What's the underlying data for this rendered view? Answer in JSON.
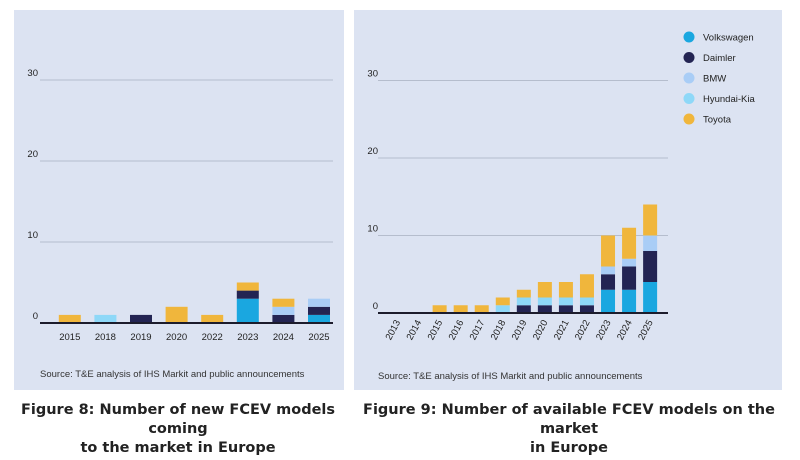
{
  "colors": {
    "Volkswagen": "#1aa7e0",
    "Daimler": "#232453",
    "BMW": "#a9cdf6",
    "Hyundai-Kia": "#8ed8f8",
    "Toyota": "#f0b63c",
    "gridline": "#a9b0c0",
    "axis": "#1c1c2c",
    "panel": "#dce3f2"
  },
  "figure8": {
    "caption_line1": "Figure 8: Number of new FCEV models coming",
    "caption_line2": "to the market in Europe",
    "source": "Source: T&E analysis of IHS Markit and public announcements"
  },
  "figure9": {
    "caption_line1": "Figure 9: Number of available FCEV models on the market",
    "caption_line2": "in Europe",
    "source": "Source: T&E analysis of IHS Markit and public announcements"
  },
  "chart_data": [
    {
      "type": "bar",
      "stacked": true,
      "title": "Figure 8: Number of new FCEV models coming to the market in Europe",
      "xlabel": "",
      "ylabel": "",
      "ylim": [
        0,
        30
      ],
      "yticks": [
        0,
        10,
        20,
        30
      ],
      "grid": true,
      "categories": [
        "2015",
        "2018",
        "2019",
        "2020",
        "2022",
        "2023",
        "2024",
        "2025"
      ],
      "series": [
        {
          "name": "Volkswagen",
          "values": [
            0,
            0,
            0,
            0,
            0,
            3,
            0,
            1
          ]
        },
        {
          "name": "Daimler",
          "values": [
            0,
            0,
            1,
            0,
            0,
            1,
            1,
            1
          ]
        },
        {
          "name": "BMW",
          "values": [
            0,
            0,
            0,
            0,
            0,
            0,
            1,
            1
          ]
        },
        {
          "name": "Hyundai-Kia",
          "values": [
            0,
            1,
            0,
            0,
            0,
            0,
            0,
            0
          ]
        },
        {
          "name": "Toyota",
          "values": [
            1,
            0,
            0,
            2,
            1,
            1,
            1,
            0
          ]
        }
      ]
    },
    {
      "type": "bar",
      "stacked": true,
      "title": "Figure 9: Number of available FCEV models on the market in Europe",
      "xlabel": "",
      "ylabel": "",
      "ylim": [
        0,
        30
      ],
      "yticks": [
        0,
        10,
        20,
        30
      ],
      "grid": true,
      "legend": "top-right",
      "categories": [
        "2013",
        "2014",
        "2015",
        "2016",
        "2017",
        "2018",
        "2019",
        "2020",
        "2021",
        "2022",
        "2023",
        "2024",
        "2025"
      ],
      "series": [
        {
          "name": "Volkswagen",
          "values": [
            0,
            0,
            0,
            0,
            0,
            0,
            0,
            0,
            0,
            0,
            3,
            3,
            4
          ]
        },
        {
          "name": "Daimler",
          "values": [
            0,
            0,
            0,
            0,
            0,
            0,
            1,
            1,
            1,
            1,
            2,
            3,
            4
          ]
        },
        {
          "name": "BMW",
          "values": [
            0,
            0,
            0,
            0,
            0,
            0,
            0,
            0,
            0,
            0,
            1,
            1,
            2
          ]
        },
        {
          "name": "Hyundai-Kia",
          "values": [
            0,
            0,
            0,
            0,
            0,
            1,
            1,
            1,
            1,
            1,
            0,
            0,
            0
          ]
        },
        {
          "name": "Toyota",
          "values": [
            0,
            0,
            1,
            1,
            1,
            1,
            1,
            2,
            2,
            3,
            4,
            4,
            4
          ]
        }
      ]
    }
  ]
}
